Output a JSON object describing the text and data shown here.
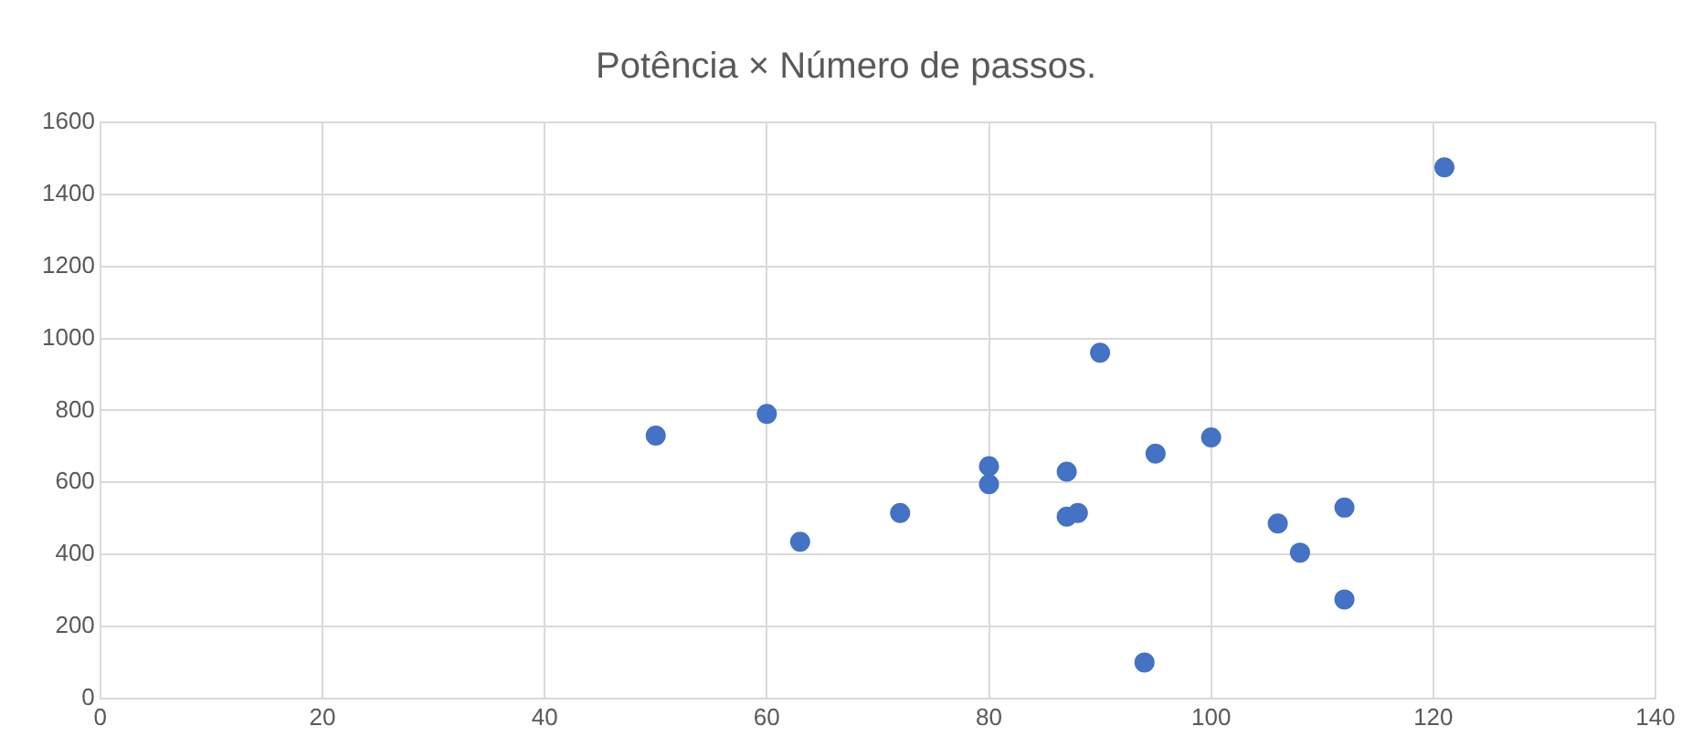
{
  "chart_data": {
    "type": "scatter",
    "title": "Potência × Número de passos.",
    "x": [
      50,
      60,
      63,
      72,
      80,
      80,
      87,
      87,
      88,
      90,
      95,
      100,
      94,
      106,
      108,
      112,
      112,
      121
    ],
    "series": [
      {
        "color": "#4472c4",
        "values": [
          730,
          790,
          435,
          515,
          645,
          595,
          630,
          505,
          515,
          960,
          680,
          725,
          100,
          486,
          405,
          530,
          275,
          1475
        ]
      }
    ],
    "xlim": [
      0,
      140
    ],
    "xticks": [
      0,
      20,
      40,
      60,
      80,
      100,
      120,
      140
    ],
    "ylim": [
      0,
      1600
    ],
    "yticks": [
      0,
      200,
      400,
      600,
      800,
      1000,
      1200,
      1400,
      1600
    ],
    "grid": true,
    "marker": "circle",
    "legend": false
  }
}
